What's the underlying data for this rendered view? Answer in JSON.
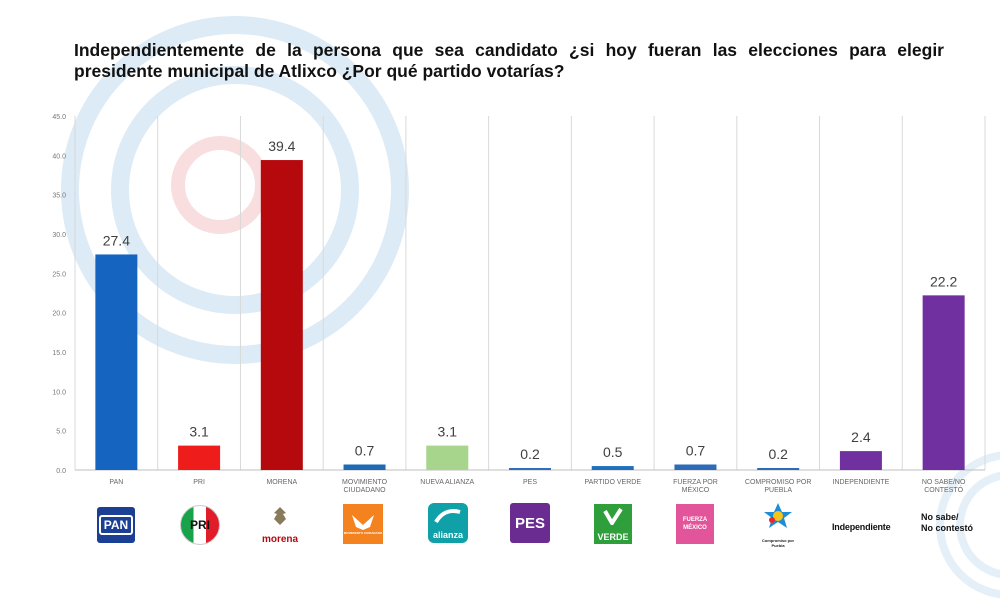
{
  "title": "Independientemente de la persona que sea candidato ¿si hoy fueran las elecciones para elegir presidente municipal de Atlixco ¿Por qué partido votarías?",
  "colors": {
    "pan": "#1565c0",
    "pri": "#ef1c1c",
    "morena": "#b5090e",
    "mc": "#1e6ab5",
    "nueva_alianza": "#a6d58b",
    "pes": "#2f6fbd",
    "verde": "#1f6fbf",
    "fxm": "#2d6bb8",
    "cpp": "#2d6bb8",
    "independiente": "#7030a0",
    "ns_nc": "#7030a0"
  },
  "chart_data": {
    "type": "bar",
    "categories": [
      "PAN",
      "PRI",
      "MORENA",
      "MOVIMIENTO CIUDADANO",
      "NUEVA ALIANZA",
      "PES",
      "PARTIDO VERDE",
      "FUERZA POR MÉXICO",
      "COMPROMISO POR PUEBLA",
      "INDEPENDIENTE",
      "NO SABE/NO CONTESTÓ"
    ],
    "values": [
      27.4,
      3.1,
      39.4,
      0.7,
      3.1,
      0.2,
      0.5,
      0.7,
      0.2,
      2.4,
      22.2
    ],
    "data_labels": [
      "27.4",
      "3.1",
      "39.4",
      "0.7",
      "3.1",
      "0.2",
      "0.5",
      "0.7",
      "0.2",
      "2.4",
      "22.2"
    ],
    "y_ticks": [
      "0.0",
      "5.0",
      "10.0",
      "15.0",
      "20.0",
      "25.0",
      "30.0",
      "35.0",
      "40.0",
      "45.0"
    ],
    "ylim": [
      0,
      45
    ],
    "grid": "vertical"
  },
  "logos": {
    "pan": "PAN",
    "pri": "PRI",
    "morena": "morena",
    "mc": "MOVIMIENTO CIUDADANO",
    "nueva_alianza": "alianza",
    "pes": "PES",
    "verde": "VERDE",
    "fxm": "FUERZA MÉXICO",
    "cpp": "Compromiso por Puebla",
    "independiente": "Independiente",
    "ns_nc_line1": "No sabe/",
    "ns_nc_line2": "No contestó"
  }
}
